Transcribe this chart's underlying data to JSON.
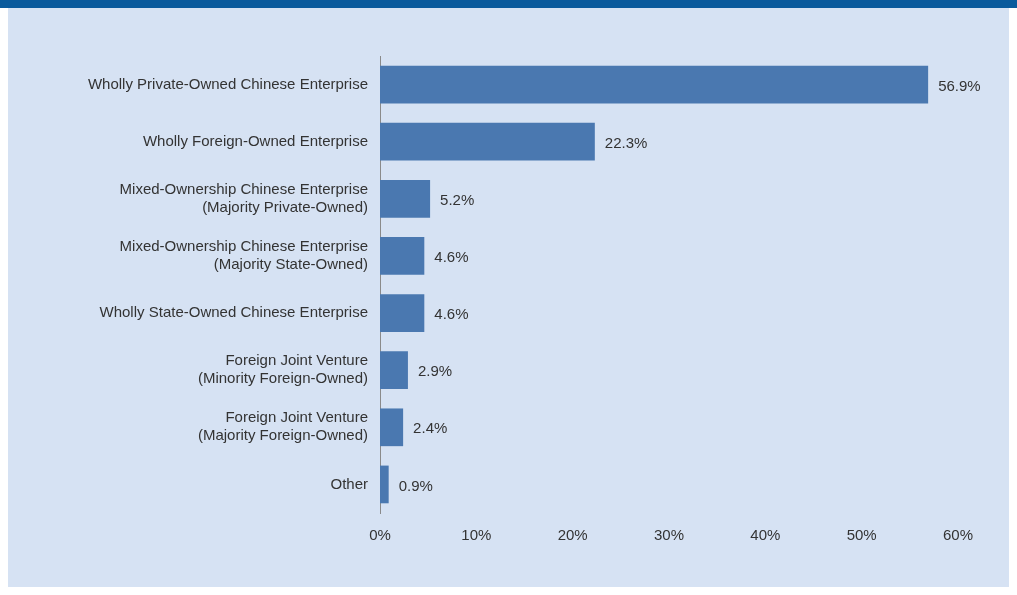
{
  "chart_data": {
    "type": "bar",
    "orientation": "horizontal",
    "categories": [
      "Wholly Private-Owned Chinese Enterprise",
      "Wholly Foreign-Owned Enterprise",
      "Mixed-Ownership Chinese Enterprise\n(Majority Private-Owned)",
      "Mixed-Ownership Chinese Enterprise\n(Majority State-Owned)",
      "Wholly State-Owned Chinese Enterprise",
      "Foreign Joint Venture\n(Minority Foreign-Owned)",
      "Foreign Joint Venture\n(Majority Foreign-Owned)",
      "Other"
    ],
    "values": [
      56.9,
      22.3,
      5.2,
      4.6,
      4.6,
      2.9,
      2.4,
      0.9
    ],
    "value_labels": [
      "56.9%",
      "22.3%",
      "5.2%",
      "4.6%",
      "4.6%",
      "2.9%",
      "2.4%",
      "0.9%"
    ],
    "color": "#4a78b0",
    "xlim": [
      0,
      60
    ],
    "xticks": [
      {
        "value": 0,
        "label": "0%"
      },
      {
        "value": 10,
        "label": "10%"
      },
      {
        "value": 20,
        "label": "20%"
      },
      {
        "value": 30,
        "label": "30%"
      },
      {
        "value": 40,
        "label": "40%"
      },
      {
        "value": 50,
        "label": "50%"
      },
      {
        "value": 60,
        "label": "60%"
      }
    ],
    "grid": false,
    "legend": false
  }
}
